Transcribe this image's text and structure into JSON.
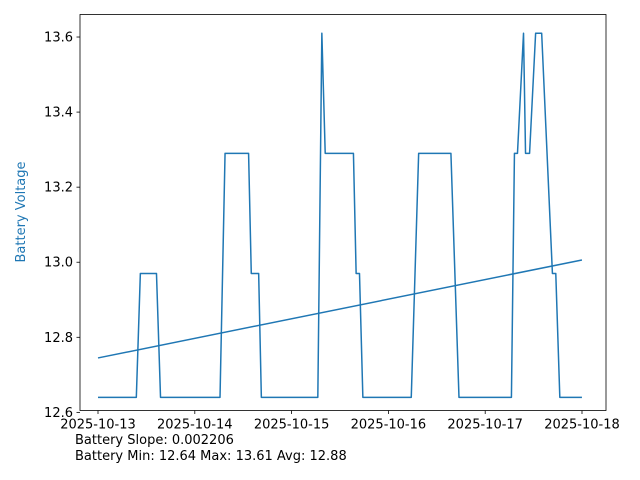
{
  "chart_data": {
    "type": "line",
    "ylabel": "Battery Voltage",
    "ylabel_color": "#1f77b4",
    "line_color": "#1f77b4",
    "x_type": "datetime",
    "xlim": [
      "2025-10-13T00:00",
      "2025-10-18T00:00"
    ],
    "ylim": [
      12.605,
      13.66
    ],
    "x_ticks": [
      "2025-10-13",
      "2025-10-14",
      "2025-10-15",
      "2025-10-16",
      "2025-10-17",
      "2025-10-18"
    ],
    "y_ticks": [
      12.6,
      12.8,
      13.0,
      13.2,
      13.4,
      13.6
    ],
    "y_tick_labels": [
      "12.6",
      "12.8",
      "13.0",
      "13.2",
      "13.4",
      "13.6"
    ],
    "grid": false,
    "series": [
      {
        "values": [
          [
            "2025-10-13T00:00",
            12.64
          ],
          [
            "2025-10-13T09:30",
            12.64
          ],
          [
            "2025-10-13T10:30",
            12.97
          ],
          [
            "2025-10-13T14:30",
            12.97
          ],
          [
            "2025-10-13T15:30",
            12.64
          ],
          [
            "2025-10-14T06:15",
            12.64
          ],
          [
            "2025-10-14T07:30",
            13.29
          ],
          [
            "2025-10-14T13:20",
            13.29
          ],
          [
            "2025-10-14T14:00",
            12.97
          ],
          [
            "2025-10-14T15:50",
            12.97
          ],
          [
            "2025-10-14T16:30",
            12.64
          ],
          [
            "2025-10-15T06:30",
            12.64
          ],
          [
            "2025-10-15T07:30",
            13.61
          ],
          [
            "2025-10-15T08:20",
            13.29
          ],
          [
            "2025-10-15T15:20",
            13.29
          ],
          [
            "2025-10-15T16:00",
            12.97
          ],
          [
            "2025-10-15T16:50",
            12.97
          ],
          [
            "2025-10-15T17:40",
            12.64
          ],
          [
            "2025-10-16T05:40",
            12.64
          ],
          [
            "2025-10-16T07:30",
            13.29
          ],
          [
            "2025-10-16T15:30",
            13.29
          ],
          [
            "2025-10-16T17:30",
            12.64
          ],
          [
            "2025-10-17T06:30",
            12.64
          ],
          [
            "2025-10-17T07:15",
            13.29
          ],
          [
            "2025-10-17T08:00",
            13.29
          ],
          [
            "2025-10-17T09:30",
            13.61
          ],
          [
            "2025-10-17T10:00",
            13.29
          ],
          [
            "2025-10-17T11:00",
            13.29
          ],
          [
            "2025-10-17T12:30",
            13.61
          ],
          [
            "2025-10-17T14:00",
            13.61
          ],
          [
            "2025-10-17T16:40",
            12.97
          ],
          [
            "2025-10-17T17:30",
            12.97
          ],
          [
            "2025-10-17T18:30",
            12.64
          ],
          [
            "2025-10-17T23:59",
            12.64
          ]
        ]
      },
      {
        "values": [
          [
            "2025-10-13T00:00",
            12.745
          ],
          [
            "2025-10-17T23:59",
            13.006
          ]
        ]
      }
    ]
  },
  "footer": {
    "line1": "Battery Slope: 0.002206",
    "line2": "Battery Min: 12.64 Max: 13.61 Avg: 12.88"
  }
}
